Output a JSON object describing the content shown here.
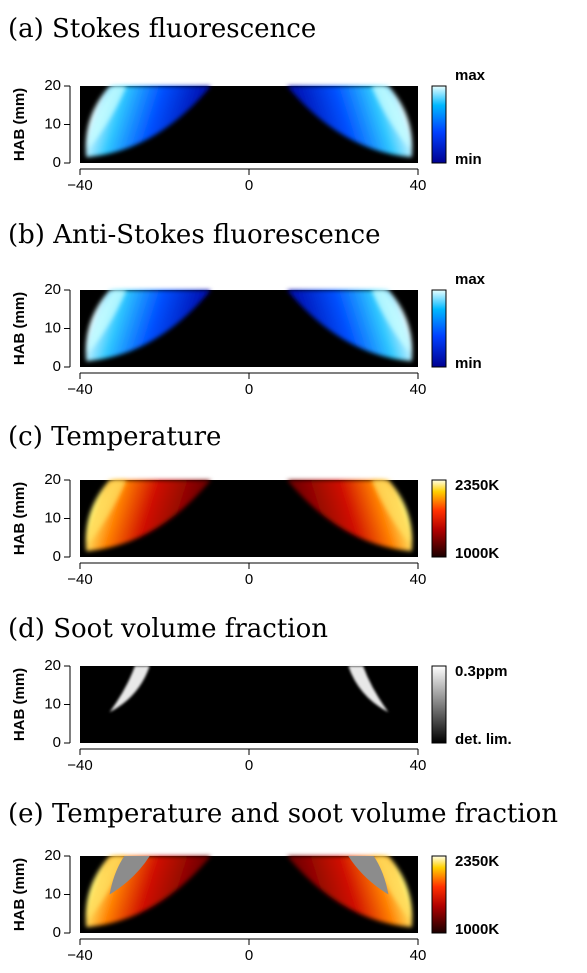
{
  "chart_data": [
    {
      "type": "heatmap",
      "title": "(a) Stokes fluorescence",
      "ylabel": "HAB (mm)",
      "colormap": "blue",
      "xlim": [
        -40,
        40
      ],
      "ylim": [
        0,
        20
      ],
      "xticks": [
        {
          "value": -40,
          "label": "−40"
        },
        0,
        40
      ],
      "yticks": [
        0,
        10,
        20
      ],
      "colorbar": {
        "max_label": "max",
        "min_label": "min"
      }
    },
    {
      "type": "heatmap",
      "title": "(b) Anti-Stokes fluorescence",
      "ylabel": "HAB (mm)",
      "colormap": "blue",
      "xlim": [
        -40,
        40
      ],
      "ylim": [
        0,
        20
      ],
      "xticks": [
        {
          "value": -40,
          "label": "−40"
        },
        0,
        40
      ],
      "yticks": [
        0,
        10,
        20
      ],
      "colorbar": {
        "max_label": "max",
        "min_label": "min"
      }
    },
    {
      "type": "heatmap",
      "title": "(c) Temperature",
      "ylabel": "HAB (mm)",
      "colormap": "hot",
      "xlim": [
        -40,
        40
      ],
      "ylim": [
        0,
        20
      ],
      "xticks": [
        {
          "value": -40,
          "label": "−40"
        },
        0,
        40
      ],
      "yticks": [
        0,
        10,
        20
      ],
      "colorbar": {
        "max_label": "2350K",
        "min_label": "1000K"
      }
    },
    {
      "type": "heatmap",
      "title": "(d) Soot volume fraction",
      "ylabel": "HAB (mm)",
      "colormap": "gray",
      "xlim": [
        -40,
        40
      ],
      "ylim": [
        0,
        20
      ],
      "xticks": [
        {
          "value": -40,
          "label": "−40"
        },
        0,
        40
      ],
      "yticks": [
        0,
        10,
        20
      ],
      "colorbar": {
        "max_label": "0.3ppm",
        "min_label": "det. lim."
      }
    },
    {
      "type": "heatmap",
      "title": "(e) Temperature and soot volume fraction",
      "ylabel": "HAB (mm)",
      "colormap": "hot-gray",
      "xlim": [
        -40,
        40
      ],
      "ylim": [
        0,
        20
      ],
      "xticks": [
        {
          "value": -40,
          "label": "−40"
        },
        0,
        40
      ],
      "yticks": [
        0,
        10,
        20
      ],
      "colorbar": {
        "max_label": "2350K",
        "min_label": "1000K"
      }
    }
  ]
}
